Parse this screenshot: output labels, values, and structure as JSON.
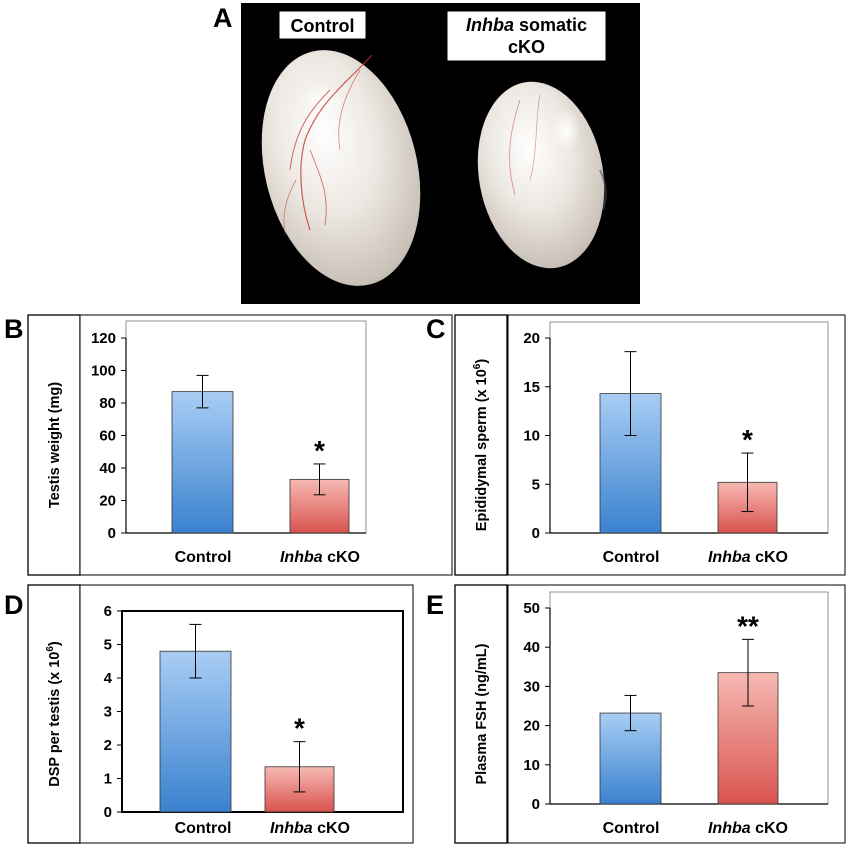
{
  "photo": {
    "letter": "A",
    "label_control": "Control",
    "label_cko_italic": "Inhba",
    "label_cko_line1_rest": " somatic",
    "label_cko_line2": "cKO"
  },
  "colors": {
    "control_top": "#a9cdf4",
    "control_bottom": "#3a82cf",
    "cko_top": "#f7b9b3",
    "cko_bottom": "#d9534f"
  },
  "chart_data": [
    {
      "id": "B",
      "type": "bar",
      "letter": "B",
      "ylabel": "Testis weight (mg)",
      "categories": [
        {
          "italic": "",
          "plain": "Control"
        },
        {
          "italic": "Inhba",
          "plain": " cKO"
        }
      ],
      "values": [
        87,
        33
      ],
      "errors": [
        10,
        9.5
      ],
      "ylim": [
        0,
        120
      ],
      "yticks": [
        0,
        20,
        40,
        60,
        80,
        100,
        120
      ],
      "annotations": [
        "",
        "*"
      ]
    },
    {
      "id": "C",
      "type": "bar",
      "letter": "C",
      "ylabel": "Epididymal sperm (x 10",
      "ylabel_sup": "6",
      "ylabel_end": ")",
      "categories": [
        {
          "italic": "",
          "plain": "Control"
        },
        {
          "italic": "Inhba",
          "plain": " cKO"
        }
      ],
      "values": [
        14.3,
        5.2
      ],
      "errors": [
        4.3,
        3
      ],
      "ylim": [
        0,
        20
      ],
      "yticks": [
        0,
        5,
        10,
        15,
        20
      ],
      "annotations": [
        "",
        "*"
      ]
    },
    {
      "id": "D",
      "type": "bar",
      "letter": "D",
      "ylabel": "DSP per testis (x 10",
      "ylabel_sup": "6",
      "ylabel_end": ")",
      "categories": [
        {
          "italic": "",
          "plain": "Control"
        },
        {
          "italic": "Inhba",
          "plain": " cKO"
        }
      ],
      "values": [
        4.8,
        1.35
      ],
      "errors": [
        0.8,
        0.75
      ],
      "ylim": [
        0,
        6
      ],
      "yticks": [
        0,
        1,
        2,
        3,
        4,
        5,
        6
      ],
      "annotations": [
        "",
        "*"
      ]
    },
    {
      "id": "E",
      "type": "bar",
      "letter": "E",
      "ylabel": "Plasma FSH (ng/mL)",
      "categories": [
        {
          "italic": "",
          "plain": "Control"
        },
        {
          "italic": "Inhba",
          "plain": " cKO"
        }
      ],
      "values": [
        23.2,
        33.5
      ],
      "errors": [
        4.5,
        8.5
      ],
      "ylim": [
        0,
        50
      ],
      "yticks": [
        0,
        10,
        20,
        30,
        40,
        50
      ],
      "annotations": [
        "",
        "**"
      ]
    }
  ]
}
